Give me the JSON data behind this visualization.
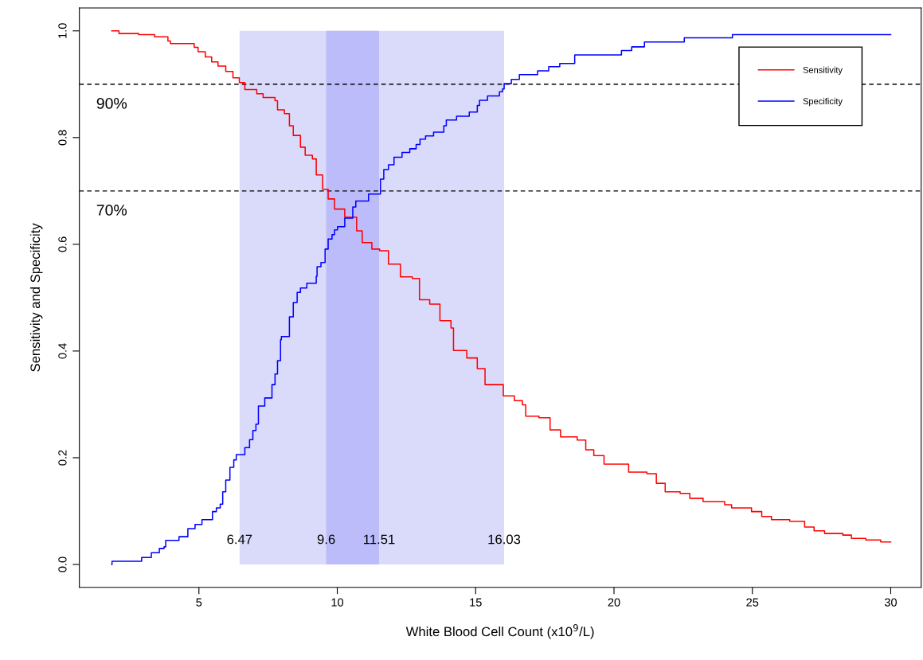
{
  "chart_data": {
    "type": "step",
    "xlabel": "White Blood Cell Count (x10$^{9}$/L)",
    "ylabel": "Sensitivity and Specificity",
    "xlim": [
      0.68,
      31.1
    ],
    "xticks": [
      5,
      10,
      15,
      20,
      25,
      30
    ],
    "ylim": [
      -0.043,
      1.043
    ],
    "yticks": [
      {
        "value": 0,
        "label": "0.0"
      },
      0.2,
      0.4,
      0.6,
      0.8,
      {
        "value": 1,
        "label": "1.0"
      }
    ],
    "grid": false,
    "legend": "top right",
    "series": [
      {
        "name": "Sensitivity",
        "color": "#ff0000",
        "x": [
          1.85,
          2.11,
          2.82,
          3.4,
          3.88,
          3.97,
          4.83,
          4.97,
          5.23,
          5.46,
          5.69,
          5.97,
          6.23,
          6.46,
          6.66,
          7.09,
          7.32,
          7.75,
          7.84,
          8.09,
          8.27,
          8.41,
          8.67,
          8.84,
          9.1,
          9.24,
          9.47,
          9.67,
          9.9,
          10.27,
          10.7,
          10.9,
          11.25,
          11.53,
          11.85,
          12.28,
          12.71,
          12.97,
          13.34,
          13.71,
          14.11,
          14.2,
          14.68,
          15.06,
          15.34,
          16.0,
          16.4,
          16.69,
          16.81,
          17.29,
          17.69,
          18.07,
          18.67,
          18.98,
          19.27,
          19.64,
          20.53,
          21.19,
          21.53,
          21.85,
          22.39,
          22.74,
          23.22,
          24.0,
          24.25,
          24.97,
          25.34,
          25.69,
          26.35,
          26.89,
          27.23,
          27.61,
          28.27,
          28.58,
          29.1,
          29.64,
          30.0
        ],
        "values": [
          1.0,
          0.995,
          0.993,
          0.989,
          0.981,
          0.976,
          0.969,
          0.961,
          0.951,
          0.942,
          0.934,
          0.924,
          0.912,
          0.903,
          0.89,
          0.882,
          0.875,
          0.869,
          0.852,
          0.845,
          0.822,
          0.804,
          0.782,
          0.767,
          0.76,
          0.73,
          0.703,
          0.685,
          0.666,
          0.651,
          0.625,
          0.603,
          0.591,
          0.588,
          0.563,
          0.539,
          0.536,
          0.496,
          0.488,
          0.457,
          0.443,
          0.401,
          0.387,
          0.367,
          0.337,
          0.316,
          0.307,
          0.299,
          0.278,
          0.275,
          0.252,
          0.239,
          0.233,
          0.215,
          0.204,
          0.188,
          0.173,
          0.17,
          0.152,
          0.136,
          0.133,
          0.124,
          0.118,
          0.112,
          0.106,
          0.099,
          0.09,
          0.084,
          0.081,
          0.07,
          0.063,
          0.058,
          0.055,
          0.049,
          0.046,
          0.042,
          0.042
        ]
      },
      {
        "name": "Specificity",
        "color": "#0000ff",
        "x": [
          1.85,
          1.86,
          2.93,
          3.28,
          3.57,
          3.74,
          3.8,
          4.28,
          4.6,
          4.86,
          5.11,
          5.49,
          5.63,
          5.77,
          5.86,
          5.97,
          6.12,
          6.26,
          6.35,
          6.66,
          6.83,
          6.95,
          7.06,
          7.15,
          7.38,
          7.64,
          7.75,
          7.84,
          7.95,
          7.98,
          8.27,
          8.41,
          8.55,
          8.67,
          8.9,
          9.24,
          9.27,
          9.41,
          9.56,
          9.67,
          9.81,
          9.9,
          10.01,
          10.27,
          10.56,
          10.67,
          11.13,
          11.56,
          11.68,
          11.85,
          12.05,
          12.34,
          12.62,
          12.85,
          12.99,
          13.19,
          13.48,
          13.85,
          13.94,
          14.31,
          14.77,
          15.06,
          15.14,
          15.43,
          15.86,
          15.97,
          16.03,
          16.29,
          16.58,
          17.24,
          17.64,
          18.04,
          18.58,
          20.27,
          20.64,
          21.1,
          22.54,
          24.28,
          30.0
        ],
        "values": [
          0.0,
          0.006,
          0.013,
          0.022,
          0.03,
          0.033,
          0.045,
          0.052,
          0.067,
          0.075,
          0.084,
          0.099,
          0.106,
          0.113,
          0.136,
          0.158,
          0.182,
          0.196,
          0.206,
          0.219,
          0.234,
          0.251,
          0.263,
          0.297,
          0.312,
          0.337,
          0.357,
          0.382,
          0.421,
          0.427,
          0.464,
          0.491,
          0.51,
          0.518,
          0.527,
          0.54,
          0.558,
          0.566,
          0.591,
          0.61,
          0.618,
          0.627,
          0.633,
          0.649,
          0.67,
          0.681,
          0.694,
          0.722,
          0.74,
          0.749,
          0.763,
          0.772,
          0.779,
          0.787,
          0.797,
          0.803,
          0.81,
          0.822,
          0.833,
          0.84,
          0.848,
          0.86,
          0.87,
          0.878,
          0.886,
          0.891,
          0.901,
          0.909,
          0.918,
          0.925,
          0.933,
          0.939,
          0.955,
          0.963,
          0.97,
          0.979,
          0.987,
          0.993,
          0.993
        ]
      }
    ],
    "bands": [
      {
        "axis": "x",
        "from": 6.47,
        "to": 16.03,
        "color": "#dadafa"
      },
      {
        "axis": "x",
        "from": 9.6,
        "to": 11.51,
        "color": "#bcbcfa"
      }
    ],
    "ref_lines": [
      {
        "axis": "y",
        "value": 0.9,
        "label": "90%",
        "color": "#000000",
        "line_style": "dashed"
      },
      {
        "axis": "y",
        "value": 0.7,
        "label": "70%",
        "color": "#000000",
        "line_style": "dashed"
      }
    ],
    "annotations": [
      {
        "text": "6.47",
        "x": 6.47,
        "y": 0.045
      },
      {
        "text": "9.6",
        "x": 9.6,
        "y": 0.045
      },
      {
        "text": "11.51",
        "x": 11.51,
        "y": 0.045
      },
      {
        "text": "16.03",
        "x": 16.03,
        "y": 0.045
      }
    ]
  }
}
